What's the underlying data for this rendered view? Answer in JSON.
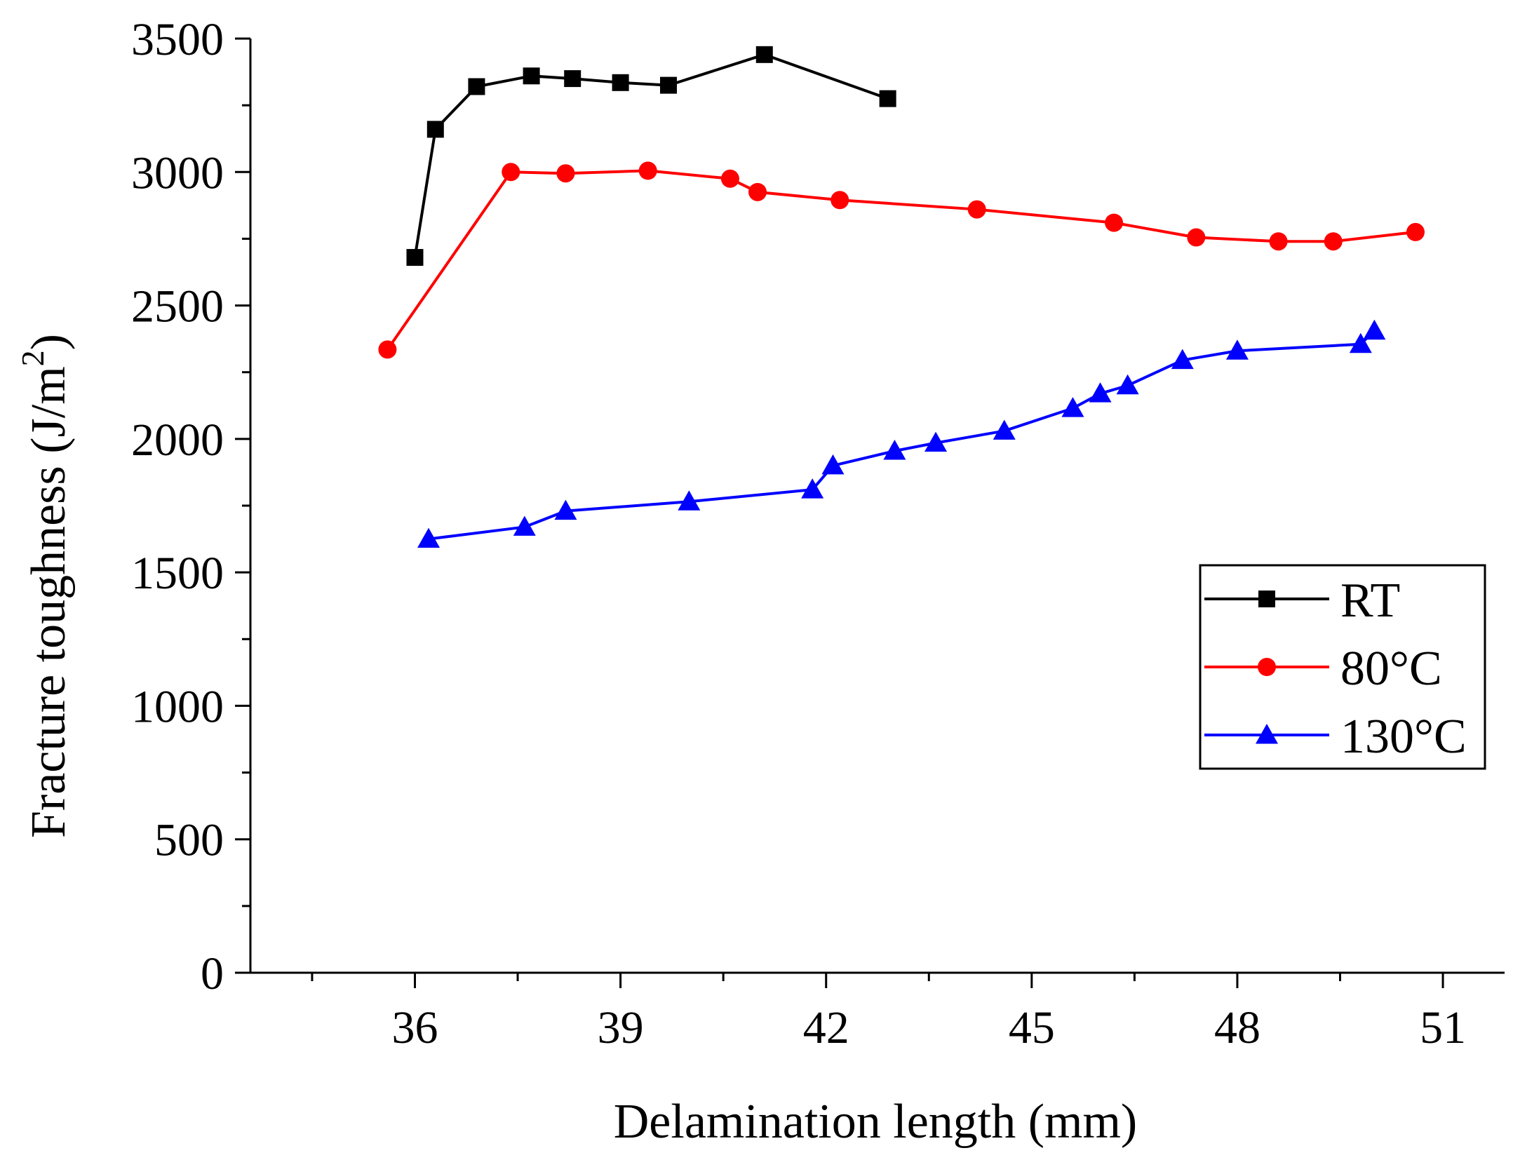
{
  "chart_data": {
    "type": "line",
    "title": "",
    "xlabel": "Delamination length (mm)",
    "ylabel": "Fracture toughness (J/m²)",
    "ylabel_main": "Fracture toughness (J/m",
    "ylabel_sup": "2",
    "ylabel_close": ")",
    "xlim": [
      33.6,
      51.9
    ],
    "ylim": [
      0,
      3500
    ],
    "xticks": [
      36,
      39,
      42,
      45,
      48,
      51
    ],
    "xtick_labels": [
      "36",
      "39",
      "42",
      "45",
      "48",
      "51"
    ],
    "xminor_ticks": [
      34.5,
      37.5,
      40.5,
      43.5,
      46.5,
      49.5
    ],
    "yticks": [
      0,
      500,
      1000,
      1500,
      2000,
      2500,
      3000,
      3500
    ],
    "ytick_labels": [
      "0",
      "500",
      "1000",
      "1500",
      "2000",
      "2500",
      "3000",
      "3500"
    ],
    "yminor_ticks": [
      250,
      750,
      1250,
      1750,
      2250,
      2750,
      3250
    ],
    "grid": false,
    "legend_position": "right",
    "series": [
      {
        "name": "RT",
        "color": "#000000",
        "marker": "square",
        "x": [
          36.0,
          36.3,
          36.9,
          37.7,
          38.3,
          39.0,
          39.7,
          41.1,
          42.9
        ],
        "y": [
          2680,
          3160,
          3320,
          3360,
          3350,
          3335,
          3325,
          3440,
          3275
        ]
      },
      {
        "name": "80°C",
        "color": "#ff0000",
        "marker": "circle",
        "x": [
          35.6,
          37.4,
          38.2,
          39.4,
          40.6,
          41.0,
          42.2,
          44.2,
          46.2,
          47.4,
          48.6,
          49.4,
          50.6
        ],
        "y": [
          2335,
          3000,
          2995,
          3005,
          2975,
          2925,
          2895,
          2860,
          2810,
          2755,
          2740,
          2740,
          2775
        ]
      },
      {
        "name": "130°C",
        "color": "#0000ff",
        "marker": "triangle",
        "x": [
          36.2,
          37.6,
          38.2,
          40.0,
          41.8,
          42.1,
          43.0,
          43.6,
          44.6,
          45.6,
          46.0,
          46.4,
          47.2,
          48.0,
          49.8,
          50.0
        ],
        "y": [
          1625,
          1670,
          1730,
          1765,
          1810,
          1900,
          1955,
          1985,
          2030,
          2115,
          2170,
          2200,
          2295,
          2330,
          2355,
          2405
        ]
      }
    ]
  }
}
